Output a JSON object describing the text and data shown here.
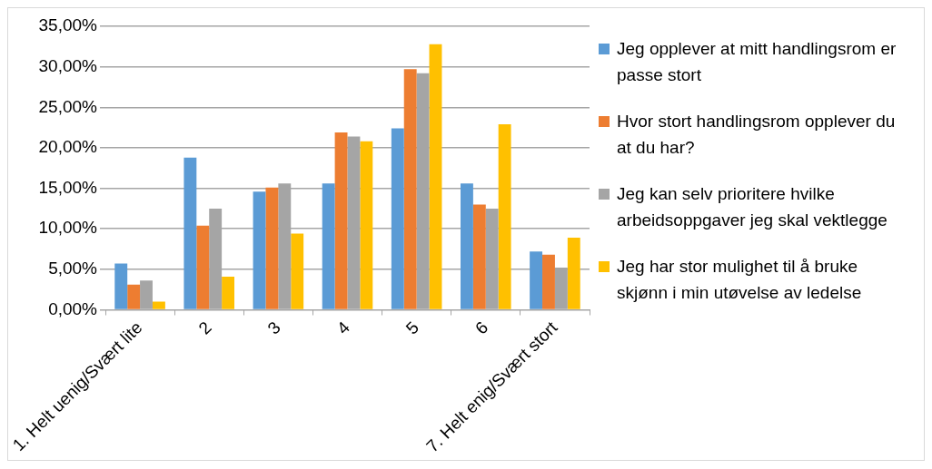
{
  "chart_data": {
    "type": "bar",
    "categories": [
      "1. Helt uenig/Svært lite",
      "2",
      "3",
      "4",
      "5",
      "6",
      "7. Helt enig/Svært stort"
    ],
    "series": [
      {
        "name": "Jeg opplever at mitt handlingsrom er passe stort",
        "color": "#5b9bd5",
        "values": [
          5.7,
          18.8,
          14.6,
          15.6,
          22.4,
          15.6,
          7.2
        ]
      },
      {
        "name": "Hvor stort handlingsrom opplever du at du har?",
        "color": "#ed7d31",
        "values": [
          3.1,
          10.4,
          15.1,
          21.9,
          29.7,
          13,
          6.8
        ]
      },
      {
        "name": "Jeg kan selv prioritere hvilke arbeidsoppgaver jeg skal vektlegge",
        "color": "#a5a5a5",
        "values": [
          3.6,
          12.5,
          15.6,
          21.4,
          29.2,
          12.5,
          5.2
        ]
      },
      {
        "name": "Jeg har stor mulighet til å bruke skjønn i min utøvelse av ledelse",
        "color": "#ffc000",
        "values": [
          1,
          4.1,
          9.4,
          20.8,
          32.8,
          22.9,
          8.9
        ]
      }
    ],
    "ylim": [
      0,
      35
    ],
    "yticks": [
      {
        "value": 0,
        "label": "0,00%"
      },
      {
        "value": 5,
        "label": "5,00%"
      },
      {
        "value": 10,
        "label": "10,00%"
      },
      {
        "value": 15,
        "label": "15,00%"
      },
      {
        "value": 20,
        "label": "20,00%"
      },
      {
        "value": 25,
        "label": "25,00%"
      },
      {
        "value": 30,
        "label": "30,00%"
      },
      {
        "value": 35,
        "label": "35,00%"
      }
    ],
    "grid": "y",
    "legend": "right"
  }
}
